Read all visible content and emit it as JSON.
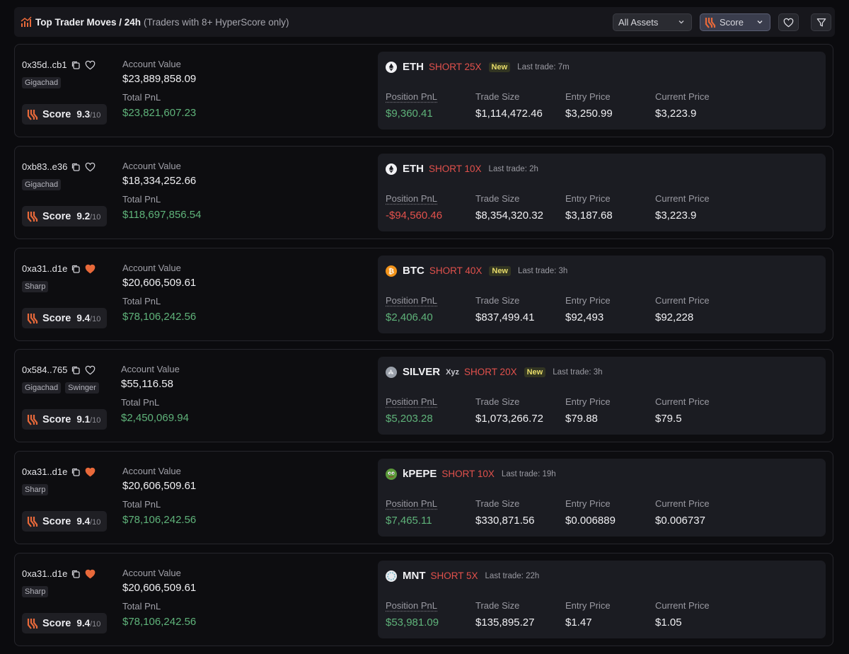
{
  "header": {
    "title": "Top Trader Moves / 24h",
    "subtitle": "(Traders with 8+ HyperScore only)",
    "assets_filter": "All Assets",
    "sort_label": "Score",
    "title_icon": "bar-chart-icon",
    "favorite_icon": "heart-icon",
    "filter_icon": "filter-icon"
  },
  "labels": {
    "account_value": "Account Value",
    "total_pnl": "Total PnL",
    "score": "Score",
    "score_max": "/10",
    "position_pnl": "Position PnL",
    "trade_size": "Trade Size",
    "entry_price": "Entry Price",
    "current_price": "Current Price"
  },
  "colors": {
    "positive": "#5fb37a",
    "negative": "#e2514c",
    "accent": "#e8693a",
    "new_badge": "#e8dc6a"
  },
  "traders": [
    {
      "address": "0x35d..cb1",
      "favorited": false,
      "tags": [
        "Gigachad"
      ],
      "score": "9.3",
      "account_value": "$23,889,858.09",
      "total_pnl": "$23,821,607.23",
      "position": {
        "asset": "ETH",
        "asset_icon": "eth-icon",
        "venue": "",
        "side": "SHORT 25X",
        "badge": "New",
        "last_trade": "Last trade: 7m",
        "position_pnl": "$9,360.41",
        "pnl_sign": "pos",
        "trade_size": "$1,114,472.46",
        "entry_price": "$3,250.99",
        "current_price": "$3,223.9"
      }
    },
    {
      "address": "0xb83..e36",
      "favorited": false,
      "tags": [
        "Gigachad"
      ],
      "score": "9.2",
      "account_value": "$18,334,252.66",
      "total_pnl": "$118,697,856.54",
      "position": {
        "asset": "ETH",
        "asset_icon": "eth-icon",
        "venue": "",
        "side": "SHORT 10X",
        "badge": "",
        "last_trade": "Last trade: 2h",
        "position_pnl": "-$94,560.46",
        "pnl_sign": "neg",
        "trade_size": "$8,354,320.32",
        "entry_price": "$3,187.68",
        "current_price": "$3,223.9"
      }
    },
    {
      "address": "0xa31..d1e",
      "favorited": true,
      "tags": [
        "Sharp"
      ],
      "score": "9.4",
      "account_value": "$20,606,509.61",
      "total_pnl": "$78,106,242.56",
      "position": {
        "asset": "BTC",
        "asset_icon": "btc-icon",
        "venue": "",
        "side": "SHORT 40X",
        "badge": "New",
        "last_trade": "Last trade: 3h",
        "position_pnl": "$2,406.40",
        "pnl_sign": "pos",
        "trade_size": "$837,499.41",
        "entry_price": "$92,493",
        "current_price": "$92,228"
      }
    },
    {
      "address": "0x584..765",
      "favorited": false,
      "tags": [
        "Gigachad",
        "Swinger"
      ],
      "score": "9.1",
      "account_value": "$55,116.58",
      "total_pnl": "$2,450,069.94",
      "position": {
        "asset": "SILVER",
        "asset_icon": "silver-icon",
        "venue": "Xyz",
        "side": "SHORT 20X",
        "badge": "New",
        "last_trade": "Last trade: 3h",
        "position_pnl": "$5,203.28",
        "pnl_sign": "pos",
        "trade_size": "$1,073,266.72",
        "entry_price": "$79.88",
        "current_price": "$79.5"
      }
    },
    {
      "address": "0xa31..d1e",
      "favorited": true,
      "tags": [
        "Sharp"
      ],
      "score": "9.4",
      "account_value": "$20,606,509.61",
      "total_pnl": "$78,106,242.56",
      "position": {
        "asset": "kPEPE",
        "asset_icon": "pepe-icon",
        "venue": "",
        "side": "SHORT 10X",
        "badge": "",
        "last_trade": "Last trade: 19h",
        "position_pnl": "$7,465.11",
        "pnl_sign": "pos",
        "trade_size": "$330,871.56",
        "entry_price": "$0.006889",
        "current_price": "$0.006737"
      }
    },
    {
      "address": "0xa31..d1e",
      "favorited": true,
      "tags": [
        "Sharp"
      ],
      "score": "9.4",
      "account_value": "$20,606,509.61",
      "total_pnl": "$78,106,242.56",
      "position": {
        "asset": "MNT",
        "asset_icon": "mnt-icon",
        "venue": "",
        "side": "SHORT 5X",
        "badge": "",
        "last_trade": "Last trade: 22h",
        "position_pnl": "$53,981.09",
        "pnl_sign": "pos",
        "trade_size": "$135,895.27",
        "entry_price": "$1.47",
        "current_price": "$1.05"
      }
    }
  ]
}
